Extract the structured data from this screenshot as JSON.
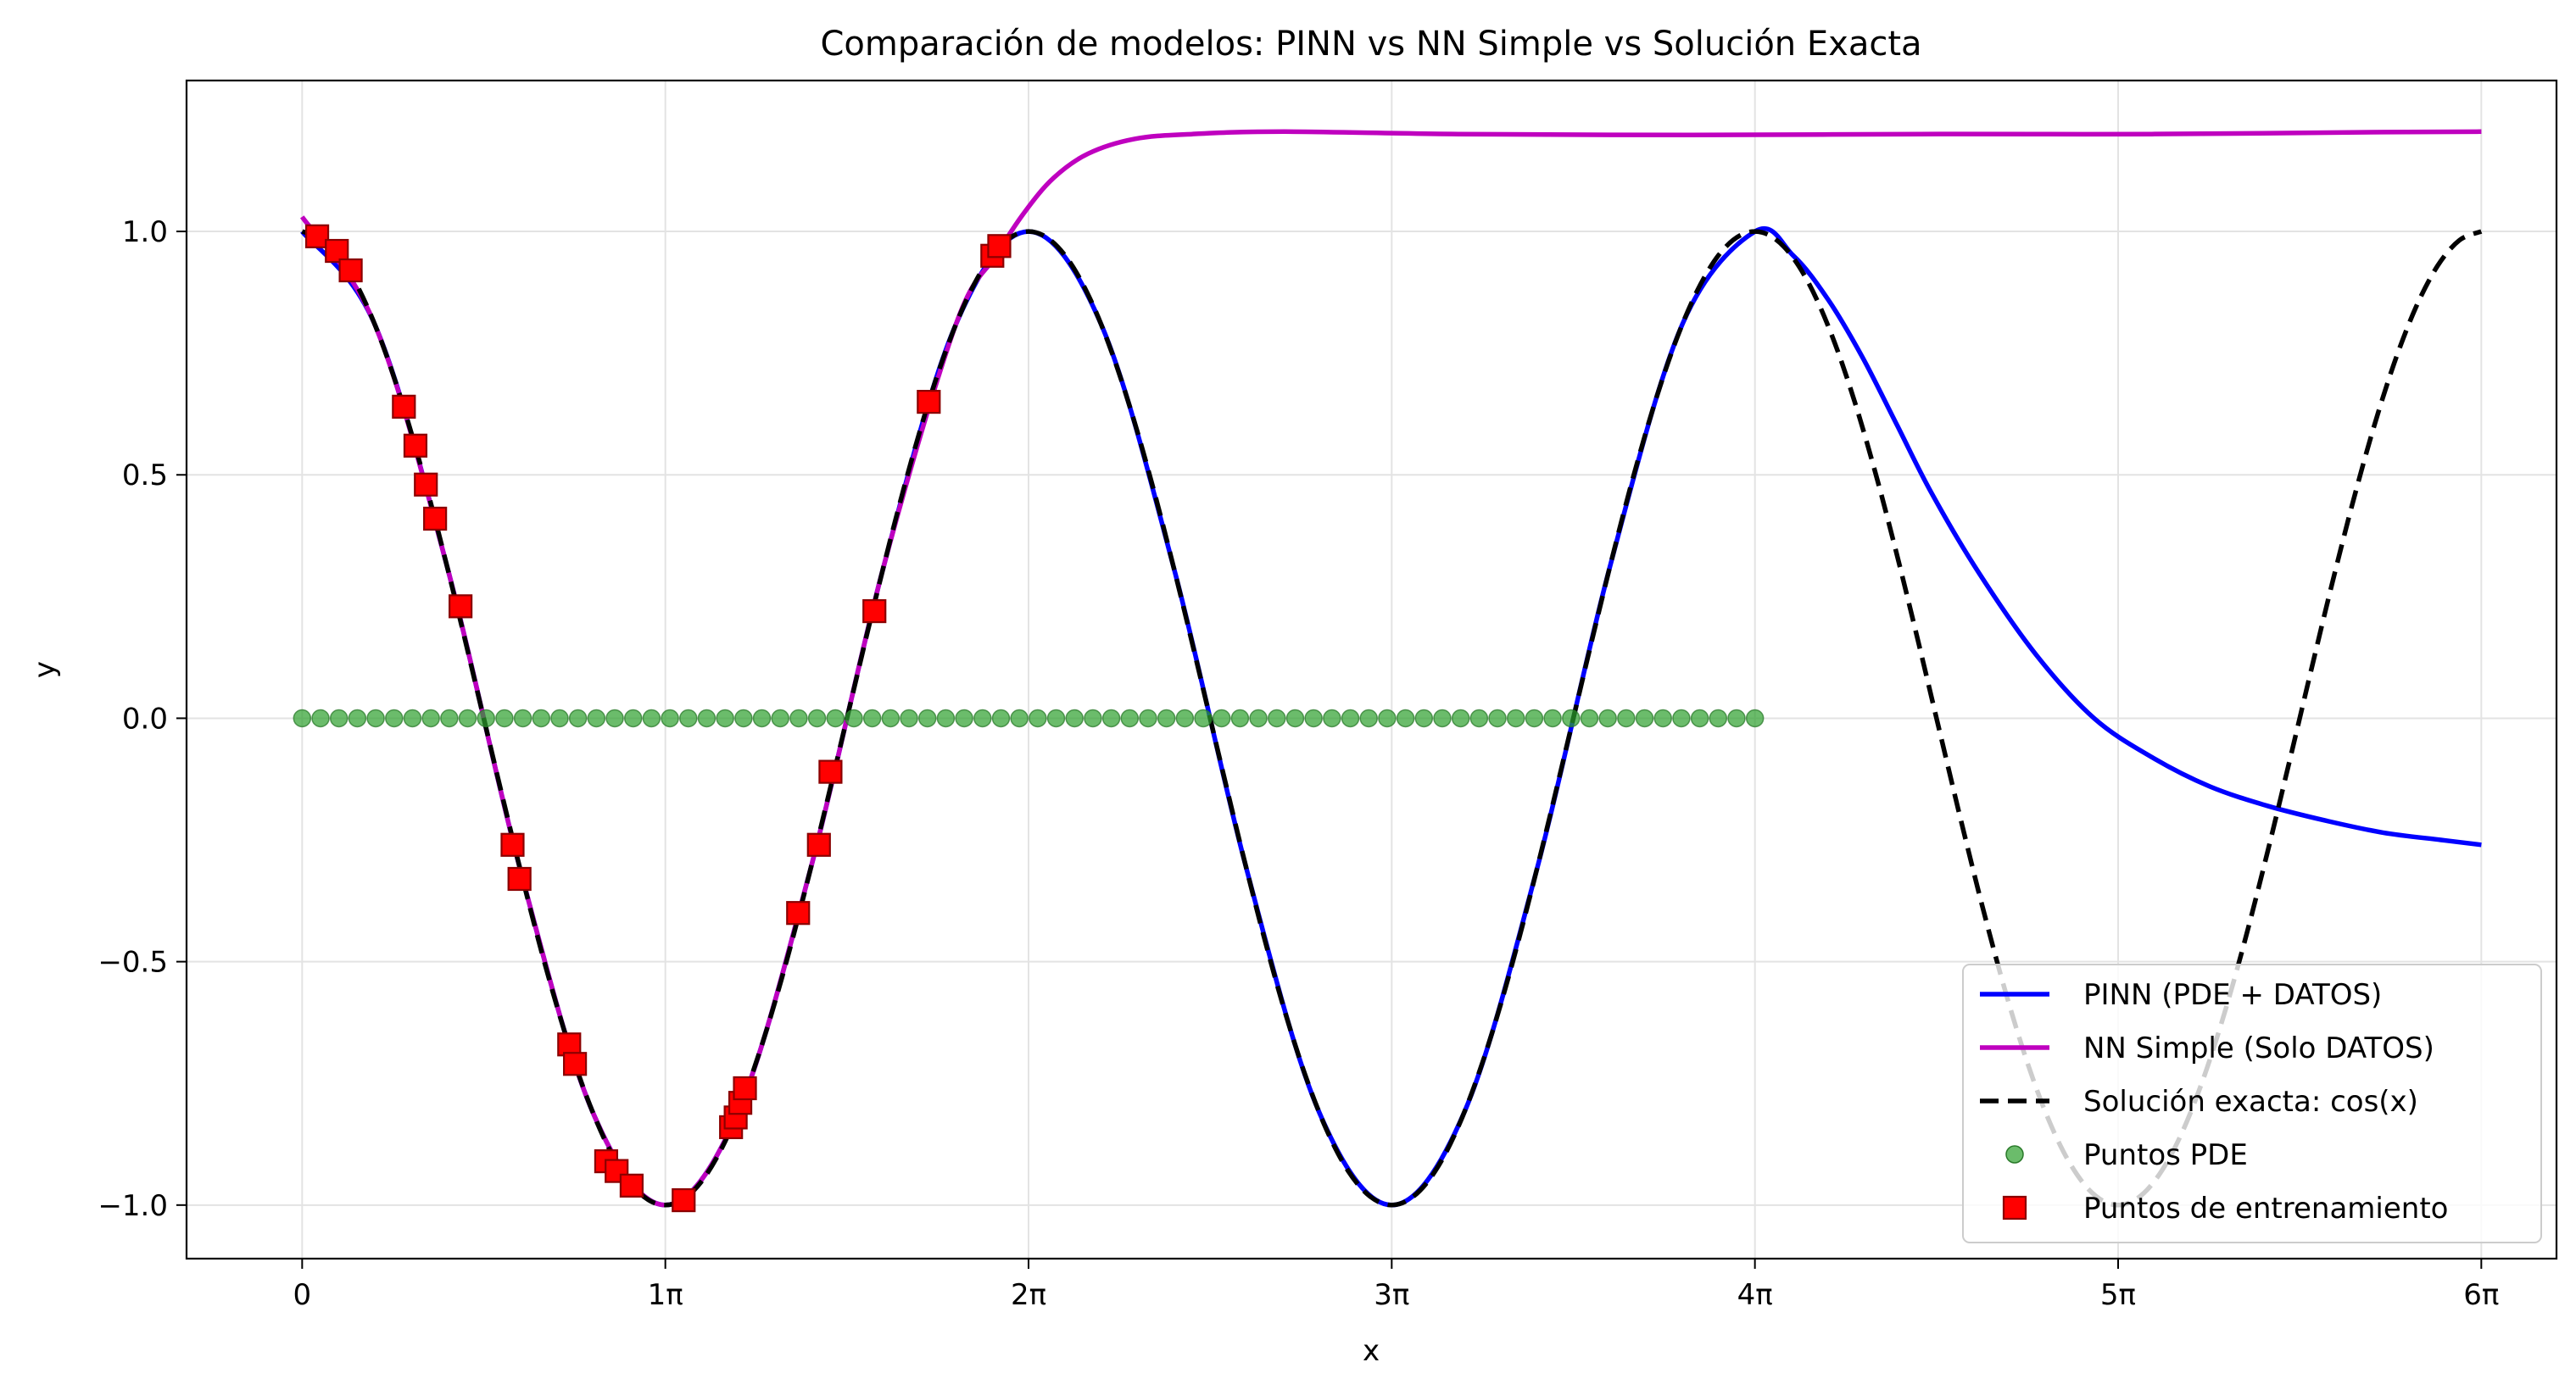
{
  "chart_data": {
    "type": "line",
    "title": "Comparación de modelos: PINN vs NN Simple vs Solución Exacta",
    "xlabel": "x",
    "ylabel": "y",
    "xlim": [
      -1.0,
      19.5
    ],
    "ylim": [
      -1.11,
      1.31
    ],
    "x_ticks": [
      {
        "value": 0,
        "label": "0"
      },
      {
        "value": 3.14159,
        "label": "1π"
      },
      {
        "value": 6.28319,
        "label": "2π"
      },
      {
        "value": 9.42478,
        "label": "3π"
      },
      {
        "value": 12.56637,
        "label": "4π"
      },
      {
        "value": 15.70796,
        "label": "5π"
      },
      {
        "value": 18.84956,
        "label": "6π"
      }
    ],
    "y_ticks": [
      {
        "value": 1.0,
        "label": "1.0"
      },
      {
        "value": 0.5,
        "label": "0.5"
      },
      {
        "value": 0.0,
        "label": "0.0"
      },
      {
        "value": -0.5,
        "label": "−0.5"
      },
      {
        "value": -1.0,
        "label": "−1.0"
      }
    ],
    "grid": true,
    "legend_position": "lower right",
    "legend": [
      {
        "label": "PINN (PDE + DATOS)",
        "style": "line",
        "color": "#0000ff"
      },
      {
        "label": "NN Simple (Solo DATOS)",
        "style": "line",
        "color": "#bf00bf"
      },
      {
        "label": "Solución exacta: cos(x)",
        "style": "dashed",
        "color": "#000000"
      },
      {
        "label": "Puntos PDE",
        "style": "circle",
        "color": "#2ca02c"
      },
      {
        "label": "Puntos de entrenamiento",
        "style": "square",
        "color": "#ff0000"
      }
    ],
    "series": [
      {
        "name": "Solución exacta: cos(x)",
        "color": "#000000",
        "dashed": true,
        "x": [
          0,
          0.1885,
          0.377,
          0.5655,
          0.754,
          0.9425,
          1.131,
          1.3195,
          1.508,
          1.6965,
          1.885,
          2.0735,
          2.262,
          2.4504,
          2.6389,
          2.8274,
          3.0159,
          3.2044,
          3.3929,
          3.5814,
          3.7699,
          3.9584,
          4.1469,
          4.3354,
          4.5239,
          4.7124,
          4.9009,
          5.0894,
          5.2779,
          5.4664,
          5.6549,
          5.8434,
          6.0319,
          6.2204,
          6.4089,
          6.5973,
          6.7858,
          6.9743,
          7.1628,
          7.3513,
          7.5398,
          7.7283,
          7.9168,
          8.1053,
          8.2938,
          8.4823,
          8.6708,
          8.8593,
          9.0478,
          9.2363,
          9.4248,
          9.6133,
          9.8018,
          9.9903,
          10.1788,
          10.3673,
          10.5558,
          10.7442,
          10.9327,
          11.1212,
          11.3097,
          11.4982,
          11.6867,
          11.8752,
          12.0637,
          12.2522,
          12.4407,
          12.6292,
          12.8177,
          13.0062,
          13.1947,
          13.3832,
          13.5717,
          13.7602,
          13.9487,
          14.1372,
          14.3257,
          14.5142,
          14.7027,
          14.8911,
          15.0796,
          15.2681,
          15.4566,
          15.6451,
          15.8336,
          16.0221,
          16.2106,
          16.3991,
          16.5876,
          16.7761,
          16.9646,
          17.1531,
          17.3416,
          17.5301,
          17.7186,
          17.9071,
          18.0956,
          18.2841,
          18.4726,
          18.6611,
          18.8496
        ],
        "y": [
          1.0,
          0.982,
          0.9298,
          0.8443,
          0.729,
          0.5878,
          0.4258,
          0.2487,
          0.0628,
          -0.1253,
          -0.309,
          -0.4818,
          -0.6374,
          -0.7705,
          -0.8763,
          -0.9511,
          -0.9921,
          -0.998,
          -0.9686,
          -0.9048,
          -0.809,
          -0.6845,
          -0.5358,
          -0.3681,
          -0.1874,
          0.0,
          0.1874,
          0.3681,
          0.5358,
          0.6845,
          0.809,
          0.9048,
          0.9686,
          0.998,
          0.9921,
          0.9511,
          0.8763,
          0.7705,
          0.6374,
          0.4818,
          0.309,
          0.1253,
          -0.0628,
          -0.2487,
          -0.4258,
          -0.5878,
          -0.729,
          -0.8443,
          -0.9298,
          -0.982,
          -1.0,
          -0.982,
          -0.9298,
          -0.8443,
          -0.729,
          -0.5878,
          -0.4258,
          -0.2487,
          -0.0628,
          0.1253,
          0.309,
          0.4818,
          0.6374,
          0.7705,
          0.8763,
          0.9511,
          0.9921,
          0.998,
          0.9686,
          0.9048,
          0.809,
          0.6845,
          0.5358,
          0.3681,
          0.1874,
          0.0,
          -0.1874,
          -0.3681,
          -0.5358,
          -0.6845,
          -0.809,
          -0.9048,
          -0.9686,
          -0.998,
          -0.9921,
          -0.9511,
          -0.8763,
          -0.7705,
          -0.6374,
          -0.4818,
          -0.309,
          -0.1253,
          0.0628,
          0.2487,
          0.4258,
          0.5878,
          0.729,
          0.8443,
          0.9298,
          0.982,
          1.0
        ]
      },
      {
        "name": "PINN (PDE + DATOS)",
        "color": "#0000ff",
        "dashed": false,
        "x": [
          0,
          0.6283,
          1.2566,
          1.885,
          2.5133,
          3.1416,
          3.7699,
          4.3982,
          5.0265,
          5.6549,
          6.2832,
          6.9115,
          7.5398,
          8.1681,
          8.7965,
          9.4248,
          10.0531,
          10.6814,
          11.3097,
          11.9381,
          12.5664,
          12.9,
          13.2,
          13.5,
          13.8,
          14.1,
          14.5,
          15.0,
          15.5,
          16.0,
          16.5,
          17.0,
          17.5,
          18.0,
          18.5,
          18.85
        ],
        "y": [
          1.0,
          0.809,
          0.309,
          -0.309,
          -0.809,
          -1.0,
          -0.809,
          -0.309,
          0.309,
          0.809,
          1.0,
          0.809,
          0.309,
          -0.309,
          -0.809,
          -1.0,
          -0.809,
          -0.309,
          0.309,
          0.809,
          1.0,
          0.95,
          0.86,
          0.74,
          0.6,
          0.46,
          0.3,
          0.13,
          0.0,
          -0.08,
          -0.14,
          -0.18,
          -0.21,
          -0.235,
          -0.25,
          -0.26
        ]
      },
      {
        "name": "NN Simple (Solo DATOS)",
        "color": "#bf00bf",
        "dashed": false,
        "x": [
          0,
          0.6283,
          1.2566,
          1.885,
          2.5133,
          3.1416,
          3.7699,
          4.3982,
          5.0265,
          5.6549,
          6.0,
          6.25,
          6.5,
          6.8,
          7.2,
          7.7,
          8.5,
          10.0,
          12.0,
          14.0,
          16.0,
          18.0,
          18.85
        ],
        "y": [
          1.03,
          0.809,
          0.309,
          -0.309,
          -0.809,
          -1.0,
          -0.809,
          -0.309,
          0.309,
          0.809,
          0.95,
          1.04,
          1.11,
          1.16,
          1.19,
          1.2,
          1.205,
          1.2,
          1.198,
          1.2,
          1.2,
          1.204,
          1.205
        ]
      }
    ],
    "pde_points": {
      "name": "Puntos PDE",
      "color": "#2ca02c",
      "x_start": 0,
      "x_end": 12.5664,
      "count": 80,
      "y": 0.0
    },
    "training_points": {
      "name": "Puntos de entrenamiento",
      "color": "#ff0000",
      "edge_color": "#8b0000",
      "x": [
        0.13,
        0.3,
        0.42,
        0.88,
        0.98,
        1.07,
        1.15,
        1.37,
        1.82,
        1.88,
        2.31,
        2.36,
        2.63,
        2.72,
        2.85,
        3.3,
        3.71,
        3.75,
        3.79,
        3.83,
        4.29,
        4.47,
        4.57,
        4.95,
        5.42,
        5.97,
        6.03
      ],
      "y": [
        0.99,
        0.96,
        0.92,
        0.64,
        0.56,
        0.48,
        0.41,
        0.23,
        -0.26,
        -0.33,
        -0.67,
        -0.71,
        -0.91,
        -0.93,
        -0.96,
        -0.99,
        -0.84,
        -0.82,
        -0.79,
        -0.76,
        -0.4,
        -0.26,
        -0.11,
        0.22,
        0.65,
        0.95,
        0.97
      ]
    }
  }
}
